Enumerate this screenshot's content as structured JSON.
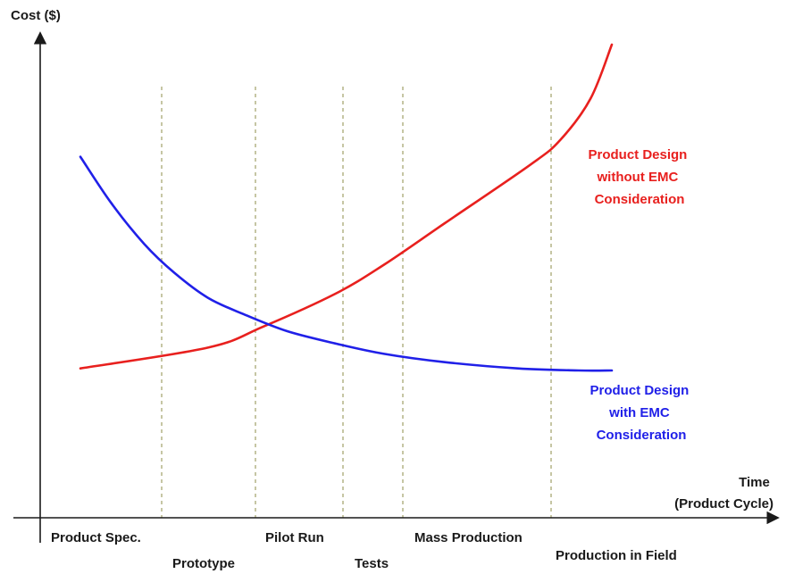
{
  "chart_data": {
    "type": "line",
    "ylabel": "Cost ($)",
    "xlabel_lines": [
      "Time",
      "(Product Cycle)"
    ],
    "grid": false,
    "ticks": false,
    "phase_labels": [
      {
        "text": "Product Spec.",
        "row": 1
      },
      {
        "text": "Prototype",
        "row": 2
      },
      {
        "text": "Pilot Run",
        "row": 1
      },
      {
        "text": "Tests",
        "row": 2
      },
      {
        "text": "Mass Production",
        "row": 1
      },
      {
        "text": "Production in Field",
        "row": 2
      }
    ],
    "series": [
      {
        "name_lines": [
          "Product Design",
          "without EMC",
          "Consideration"
        ],
        "color": "#e8201e",
        "values": [
          [
            0.0,
            0.22
          ],
          [
            0.21,
            0.27
          ],
          [
            0.3,
            0.32
          ],
          [
            0.42,
            0.4
          ],
          [
            0.5,
            0.47
          ],
          [
            0.6,
            0.57
          ],
          [
            0.74,
            0.71
          ],
          [
            0.79,
            0.77
          ],
          [
            0.84,
            0.87
          ],
          [
            0.875,
            1.0
          ]
        ]
      },
      {
        "name_lines": [
          "Product Design",
          "with EMC",
          "Consideration"
        ],
        "color": "#2020e8",
        "values": [
          [
            0.0,
            0.73
          ],
          [
            0.05,
            0.62
          ],
          [
            0.105,
            0.52
          ],
          [
            0.155,
            0.45
          ],
          [
            0.21,
            0.39
          ],
          [
            0.27,
            0.35
          ],
          [
            0.34,
            0.31
          ],
          [
            0.42,
            0.28
          ],
          [
            0.5,
            0.255
          ],
          [
            0.6,
            0.235
          ],
          [
            0.72,
            0.22
          ],
          [
            0.82,
            0.215
          ],
          [
            0.875,
            0.215
          ]
        ]
      }
    ]
  }
}
